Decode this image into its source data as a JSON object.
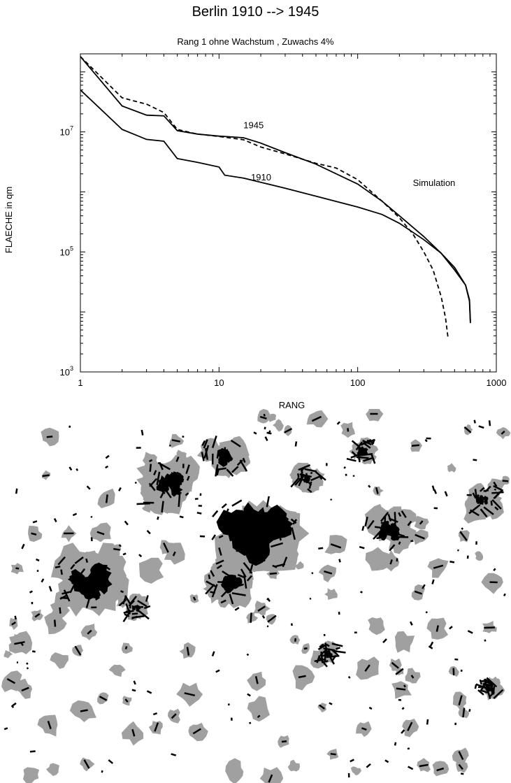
{
  "chart_data": {
    "type": "line",
    "title": "Berlin 1910 --> 1945",
    "subtitle": "Rang 1 ohne Wachstum , Zuwachs 4%",
    "xlabel": "RANG",
    "ylabel": "FLAECHE in qm",
    "x_scale": "log",
    "y_scale": "log",
    "xlim": [
      1,
      1000
    ],
    "ylim": [
      1000,
      200000000
    ],
    "x_ticks": [
      {
        "value": 1,
        "label": "1"
      },
      {
        "value": 10,
        "label": "10"
      },
      {
        "value": 100,
        "label": "100"
      },
      {
        "value": 1000,
        "label": "1000"
      }
    ],
    "y_ticks": [
      {
        "value": 1000,
        "base": "10",
        "exp": "3"
      },
      {
        "value": 100000,
        "base": "10",
        "exp": "5"
      },
      {
        "value": 10000000,
        "base": "10",
        "exp": "7"
      }
    ],
    "grid": false,
    "series": [
      {
        "name": "1910",
        "style": "solid",
        "x": [
          1,
          2,
          3,
          4,
          5,
          7,
          10,
          11,
          15,
          20,
          30,
          50,
          100,
          150,
          200,
          300,
          400,
          500,
          600,
          640,
          650
        ],
        "y": [
          50000000,
          11000000,
          7500000,
          7000000,
          3600000,
          3100000,
          2600000,
          1900000,
          1700000,
          1450000,
          1150000,
          850000,
          560000,
          420000,
          300000,
          160000,
          95000,
          55000,
          28000,
          15000,
          6500
        ]
      },
      {
        "name": "1945",
        "style": "solid",
        "x": [
          1,
          2,
          3,
          4,
          5,
          7,
          10,
          15,
          20,
          30,
          50,
          100,
          150,
          200,
          300,
          400,
          500,
          600,
          640,
          650
        ],
        "y": [
          180000000,
          27000000,
          19000000,
          18500000,
          10500000,
          9200000,
          8500000,
          8000000,
          6500000,
          4500000,
          2900000,
          1350000,
          700000,
          400000,
          180000,
          95000,
          50000,
          28000,
          16000,
          7000
        ]
      },
      {
        "name": "Simulation",
        "style": "dashed",
        "x": [
          1,
          2,
          3,
          4,
          5,
          7,
          10,
          15,
          20,
          30,
          50,
          70,
          100,
          150,
          200,
          250,
          300,
          350,
          400,
          430,
          450
        ],
        "y": [
          180000000,
          37000000,
          29000000,
          21000000,
          11000000,
          9200000,
          8400000,
          7400000,
          5600000,
          4300000,
          3000000,
          2500000,
          1600000,
          700000,
          370000,
          200000,
          100000,
          50000,
          18000,
          8000,
          3500
        ]
      }
    ],
    "annotations": [
      {
        "text": "1945",
        "x": 15,
        "y": 11500000
      },
      {
        "text": "1910",
        "x": 17,
        "y": 1550000
      },
      {
        "text": "Simulation",
        "x": 250,
        "y": 1250000
      }
    ]
  },
  "map": {
    "colors": {
      "background": "#ffffff",
      "built_1910": "#000000",
      "simulated": "#a0a0a0"
    }
  }
}
